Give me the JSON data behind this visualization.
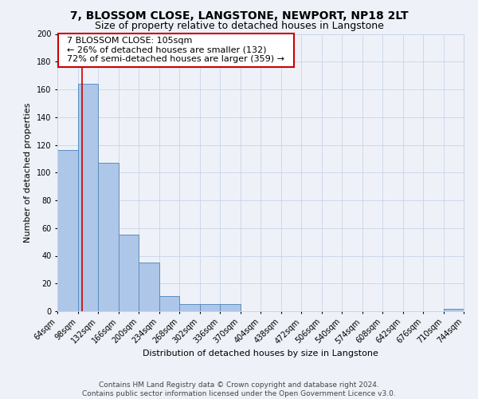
{
  "title": "7, BLOSSOM CLOSE, LANGSTONE, NEWPORT, NP18 2LT",
  "subtitle": "Size of property relative to detached houses in Langstone",
  "xlabel": "Distribution of detached houses by size in Langstone",
  "ylabel": "Number of detached properties",
  "bin_edges": [
    64,
    98,
    132,
    166,
    200,
    234,
    268,
    302,
    336,
    370,
    404,
    438,
    472,
    506,
    540,
    574,
    608,
    642,
    676,
    710,
    744
  ],
  "bin_labels": [
    "64sqm",
    "98sqm",
    "132sqm",
    "166sqm",
    "200sqm",
    "234sqm",
    "268sqm",
    "302sqm",
    "336sqm",
    "370sqm",
    "404sqm",
    "438sqm",
    "472sqm",
    "506sqm",
    "540sqm",
    "574sqm",
    "608sqm",
    "642sqm",
    "676sqm",
    "710sqm",
    "744sqm"
  ],
  "counts": [
    116,
    164,
    107,
    55,
    35,
    11,
    5,
    5,
    5,
    0,
    0,
    0,
    0,
    0,
    0,
    0,
    0,
    0,
    0,
    2,
    0
  ],
  "bar_color": "#aec6e8",
  "bar_edge_color": "#5a8fc0",
  "property_value": 105,
  "property_line_color": "#cc0000",
  "annotation_text_line1": "7 BLOSSOM CLOSE: 105sqm",
  "annotation_text_line2": "← 26% of detached houses are smaller (132)",
  "annotation_text_line3": "72% of semi-detached houses are larger (359) →",
  "annotation_box_color": "#ffffff",
  "annotation_box_edge_color": "#cc0000",
  "ylim": [
    0,
    200
  ],
  "yticks": [
    0,
    20,
    40,
    60,
    80,
    100,
    120,
    140,
    160,
    180,
    200
  ],
  "footer_line1": "Contains HM Land Registry data © Crown copyright and database right 2024.",
  "footer_line2": "Contains public sector information licensed under the Open Government Licence v3.0.",
  "background_color": "#eef2f8",
  "grid_color": "#c8d4e8",
  "title_fontsize": 10,
  "subtitle_fontsize": 9,
  "axis_label_fontsize": 8,
  "tick_fontsize": 7,
  "annotation_fontsize": 8,
  "footer_fontsize": 6.5
}
